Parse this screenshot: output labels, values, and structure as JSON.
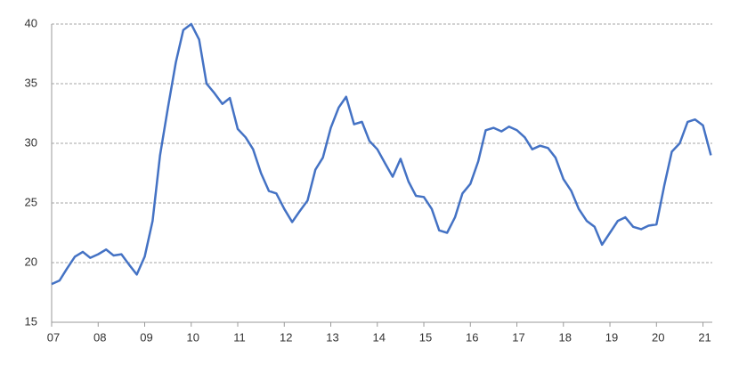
{
  "chart_data": {
    "type": "line",
    "x": [
      2007.0,
      2007.17,
      2007.33,
      2007.5,
      2007.67,
      2007.83,
      2008.0,
      2008.17,
      2008.33,
      2008.5,
      2008.67,
      2008.83,
      2009.0,
      2009.17,
      2009.33,
      2009.5,
      2009.67,
      2009.83,
      2010.0,
      2010.17,
      2010.33,
      2010.5,
      2010.67,
      2010.83,
      2011.0,
      2011.17,
      2011.33,
      2011.5,
      2011.67,
      2011.83,
      2012.0,
      2012.17,
      2012.33,
      2012.5,
      2012.67,
      2012.83,
      2013.0,
      2013.17,
      2013.33,
      2013.5,
      2013.67,
      2013.83,
      2014.0,
      2014.17,
      2014.33,
      2014.5,
      2014.67,
      2014.83,
      2015.0,
      2015.17,
      2015.33,
      2015.5,
      2015.67,
      2015.83,
      2016.0,
      2016.17,
      2016.33,
      2016.5,
      2016.67,
      2016.83,
      2017.0,
      2017.17,
      2017.33,
      2017.5,
      2017.67,
      2017.83,
      2018.0,
      2018.17,
      2018.33,
      2018.5,
      2018.67,
      2018.83,
      2019.0,
      2019.17,
      2019.33,
      2019.5,
      2019.67,
      2019.83,
      2020.0,
      2020.17,
      2020.33,
      2020.5,
      2020.67,
      2020.83,
      2021.0,
      2021.17
    ],
    "series": [
      {
        "color": "#4472c4",
        "values": [
          18.2,
          18.5,
          19.5,
          20.5,
          20.9,
          20.4,
          20.7,
          21.1,
          20.6,
          20.7,
          19.8,
          19.0,
          20.5,
          23.5,
          29.0,
          33.0,
          36.8,
          39.5,
          40.0,
          38.7,
          35.0,
          34.2,
          33.3,
          33.8,
          31.2,
          30.5,
          29.5,
          27.5,
          26.0,
          25.8,
          24.5,
          23.4,
          24.3,
          25.2,
          27.8,
          28.8,
          31.3,
          33.0,
          33.9,
          31.6,
          31.8,
          30.2,
          29.5,
          28.3,
          27.2,
          28.7,
          26.8,
          25.6,
          25.5,
          24.5,
          22.7,
          22.5,
          23.8,
          25.8,
          26.6,
          28.5,
          31.1,
          31.3,
          31.0,
          31.4,
          31.1,
          30.5,
          29.5,
          29.8,
          29.6,
          28.8,
          27.0,
          26.0,
          24.5,
          23.5,
          23.0,
          21.5,
          22.5,
          23.5,
          23.8,
          23.0,
          22.8,
          23.1,
          23.2,
          26.5,
          29.3,
          30.0,
          31.8,
          32.0,
          31.5,
          29.0
        ]
      }
    ],
    "xlim": [
      2007,
      2021.2
    ],
    "xticks": [
      {
        "value": 2007,
        "label": "07"
      },
      {
        "value": 2008,
        "label": "08"
      },
      {
        "value": 2009,
        "label": "09"
      },
      {
        "value": 2010,
        "label": "10"
      },
      {
        "value": 2011,
        "label": "11"
      },
      {
        "value": 2012,
        "label": "12"
      },
      {
        "value": 2013,
        "label": "13"
      },
      {
        "value": 2014,
        "label": "14"
      },
      {
        "value": 2015,
        "label": "15"
      },
      {
        "value": 2016,
        "label": "16"
      },
      {
        "value": 2017,
        "label": "17"
      },
      {
        "value": 2018,
        "label": "18"
      },
      {
        "value": 2019,
        "label": "19"
      },
      {
        "value": 2020,
        "label": "20"
      },
      {
        "value": 2021,
        "label": "21"
      }
    ],
    "ylim": [
      15,
      40
    ],
    "yticks": [
      15,
      20,
      25,
      30,
      35,
      40
    ],
    "grid": true
  }
}
